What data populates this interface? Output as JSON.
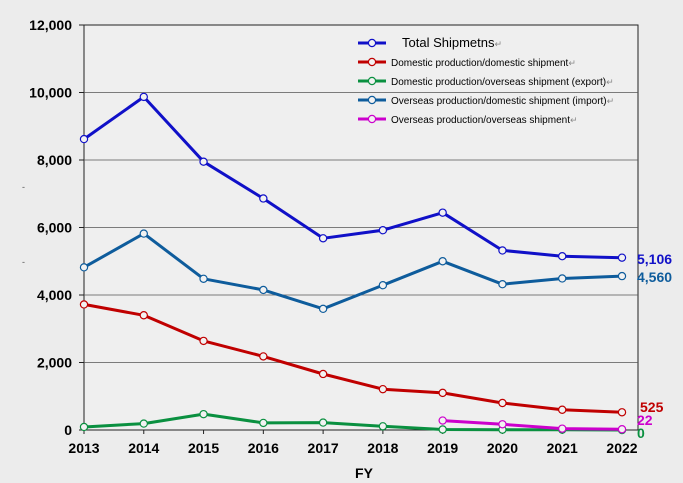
{
  "chart_data": {
    "type": "line",
    "xlabel": "FY",
    "ylabel": "",
    "title": "",
    "x": [
      "2013",
      "2014",
      "2015",
      "2016",
      "2017",
      "2018",
      "2019",
      "2020",
      "2021",
      "2022"
    ],
    "ylim": [
      0,
      12000
    ],
    "yticks": [
      "0",
      "2,000",
      "4,000",
      "6,000",
      "8,000",
      "10,000",
      "12,000"
    ],
    "grid": true,
    "legend_position": "top-right",
    "series": [
      {
        "key": "total",
        "name": "Total Shipmetns",
        "color": "#1010c8",
        "values": [
          8620,
          9870,
          7950,
          6860,
          5680,
          5920,
          6440,
          5320,
          5150,
          5106
        ],
        "end_label": "5,106"
      },
      {
        "key": "dom_dom",
        "name": "Domestic production/domestic shipment",
        "color": "#c00000",
        "values": [
          3720,
          3400,
          2640,
          2180,
          1660,
          1210,
          1100,
          800,
          600,
          525
        ],
        "end_label": "525"
      },
      {
        "key": "dom_ovs",
        "name": "Domestic production/overseas shipment (export)",
        "color": "#0a9040",
        "values": [
          90,
          190,
          470,
          210,
          220,
          110,
          15,
          10,
          10,
          0
        ],
        "end_label": "0"
      },
      {
        "key": "ovs_dom",
        "name": "Overseas production/domestic shipment (import)",
        "color": "#0e5c9c",
        "values": [
          4820,
          5820,
          4480,
          4150,
          3590,
          4290,
          5000,
          4320,
          4490,
          4560
        ],
        "end_label": "4,560"
      },
      {
        "key": "ovs_ovs",
        "name": "Overseas production/overseas shipment",
        "color": "#cc00cc",
        "values": [
          null,
          null,
          null,
          null,
          null,
          null,
          280,
          170,
          40,
          22
        ],
        "end_label": "22"
      }
    ]
  },
  "legend_para_mark": "↵",
  "side_marks": [
    "-",
    "-"
  ]
}
